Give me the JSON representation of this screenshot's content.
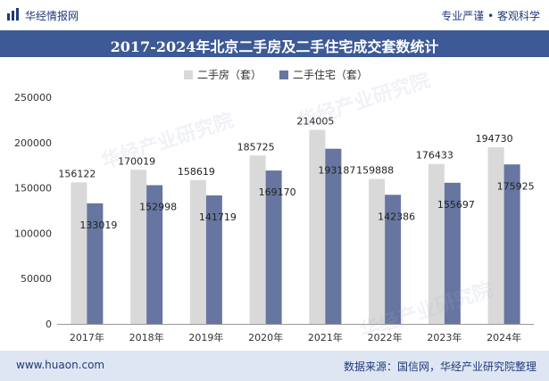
{
  "header": {
    "brand": "华经情报网",
    "slogan": "专业严谨 • 客观科学",
    "title": "2017-2024年北京二手房及二手住宅成交套数统计"
  },
  "footer": {
    "site": "www.huaon.com",
    "source": "数据来源：国信网，华经产业研究院整理"
  },
  "watermark": "华经产业研究院",
  "colors": {
    "series1": "#d9d9d9",
    "series2": "#6676a0",
    "title_bg": "#3d5a96",
    "footer_bg": "#dfe6f3"
  },
  "chart_data": {
    "type": "bar",
    "categories": [
      "2017年",
      "2018年",
      "2019年",
      "2020年",
      "2021年",
      "2022年",
      "2023年",
      "2024年"
    ],
    "series": [
      {
        "name": "二手房（套）",
        "values": [
          156122,
          170019,
          158619,
          185725,
          214005,
          159888,
          176433,
          194730
        ]
      },
      {
        "name": "二手住宅（套）",
        "values": [
          133019,
          152998,
          141719,
          169170,
          193187,
          142386,
          155697,
          175925
        ]
      }
    ],
    "ylim": [
      0,
      250000
    ],
    "yticks": [
      "0",
      "50000",
      "100000",
      "150000",
      "200000",
      "250000"
    ],
    "legend": "top-center",
    "grid": false
  }
}
